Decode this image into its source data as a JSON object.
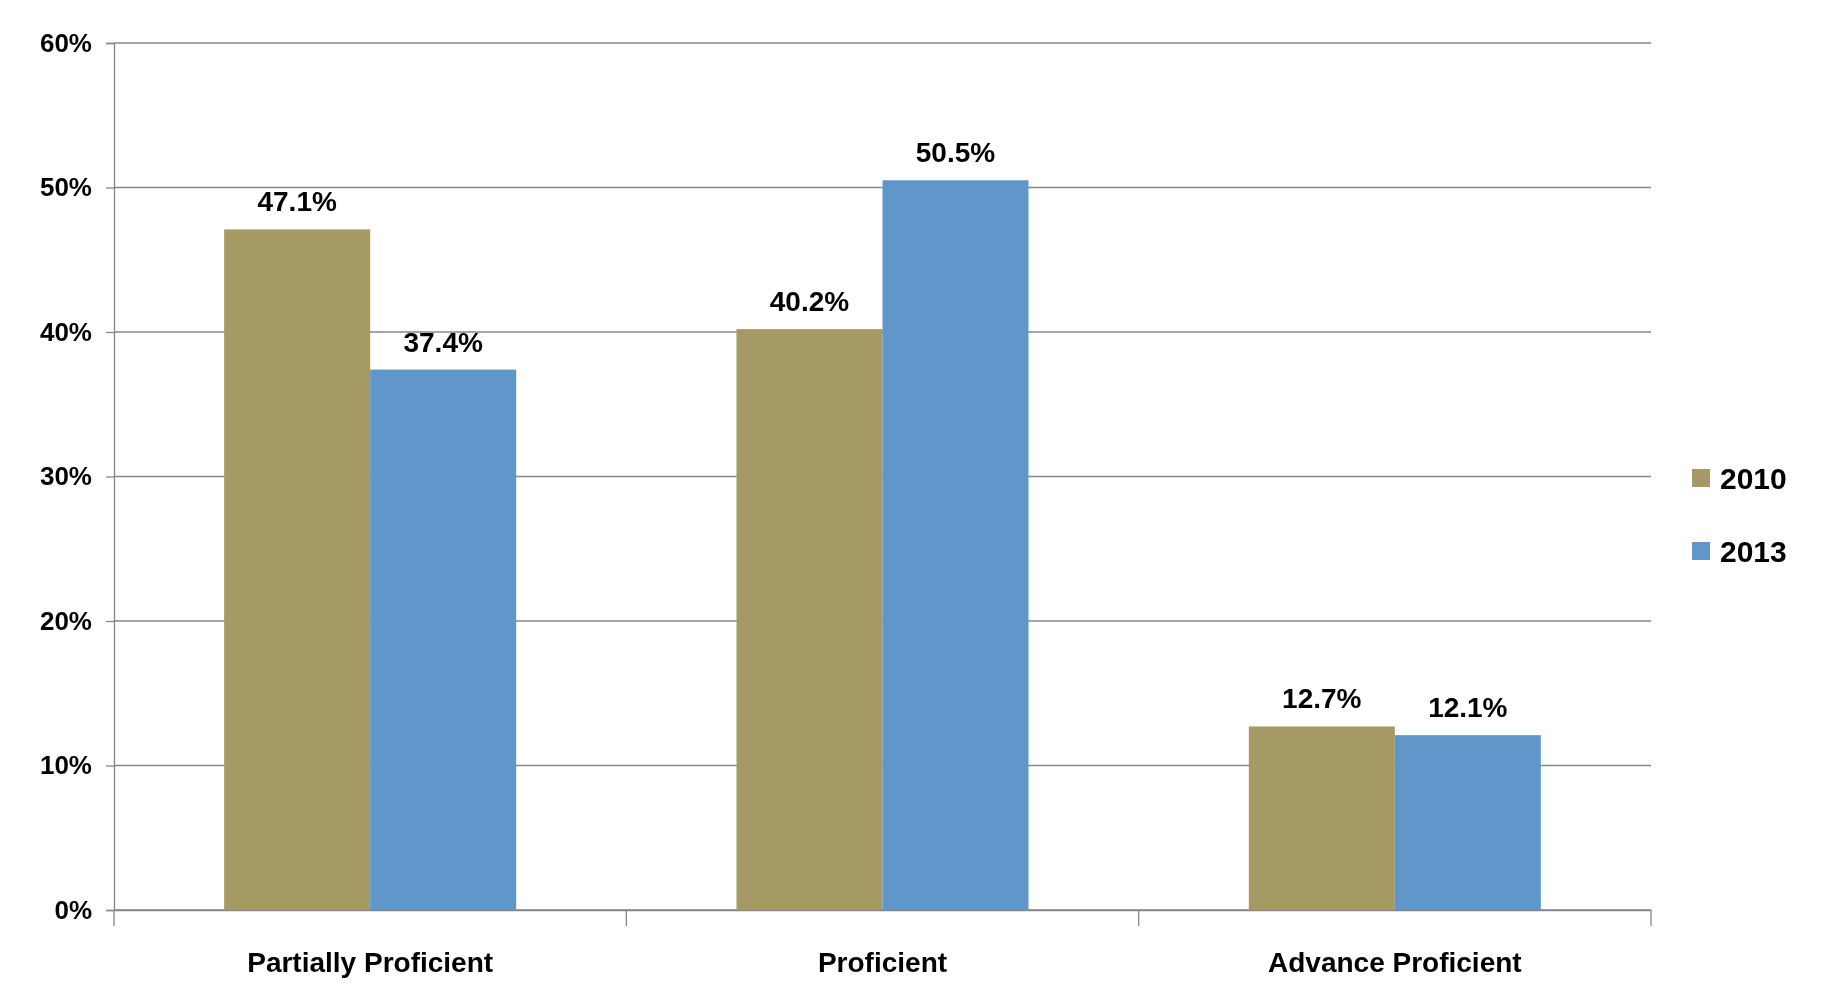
{
  "chart_data": {
    "type": "bar",
    "categories": [
      "Partially Proficient",
      "Proficient",
      "Advance Proficient"
    ],
    "series": [
      {
        "name": "2010",
        "color": "#a69a64",
        "values": [
          47.1,
          40.2,
          12.7
        ],
        "value_labels": [
          "47.1%",
          "40.2%",
          "12.7%"
        ]
      },
      {
        "name": "2013",
        "color": "#6096c9",
        "values": [
          37.4,
          50.5,
          12.1
        ],
        "value_labels": [
          "37.4%",
          "50.5%",
          "12.1%"
        ]
      }
    ],
    "ylim": [
      0,
      60
    ],
    "yticks": [
      {
        "value": 0,
        "label": "0%"
      },
      {
        "value": 10,
        "label": "10%"
      },
      {
        "value": 20,
        "label": "20%"
      },
      {
        "value": 30,
        "label": "30%"
      },
      {
        "value": 40,
        "label": "40%"
      },
      {
        "value": 50,
        "label": "50%"
      },
      {
        "value": 60,
        "label": "60%"
      }
    ],
    "grid": "y",
    "legend": "right"
  }
}
